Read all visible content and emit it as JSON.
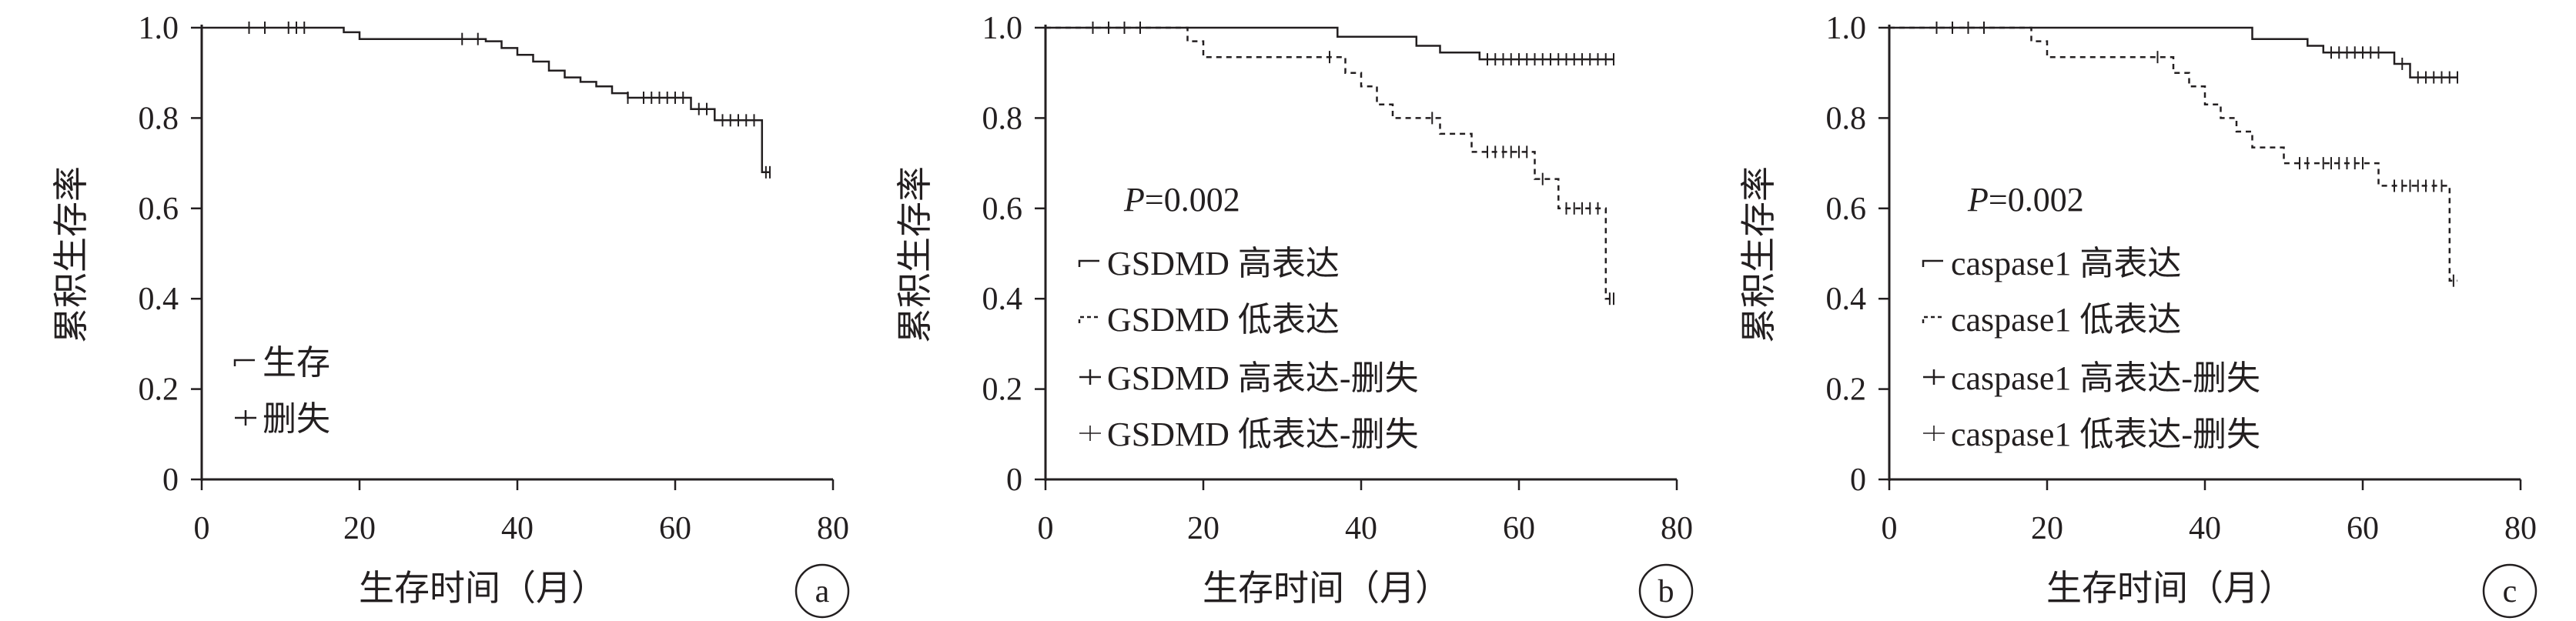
{
  "figure": {
    "panels": [
      {
        "letter": "a",
        "ylabel": "累积生存率",
        "xlabel": "生存时间（月）",
        "pvalue_label": "",
        "pvalue": ""
      },
      {
        "letter": "b",
        "ylabel": "累积生存率",
        "xlabel": "生存时间（月）",
        "pvalue_label": "P",
        "pvalue": "=0.002"
      },
      {
        "letter": "c",
        "ylabel": "累积生存率",
        "xlabel": "生存时间（月）",
        "pvalue_label": "P",
        "pvalue": "=0.002"
      }
    ]
  },
  "chart_data": [
    {
      "type": "line",
      "subtype": "kaplan-meier",
      "panel": "a",
      "xlabel": "生存时间（月）",
      "ylabel": "累积生存率",
      "xlim": [
        0,
        80
      ],
      "ylim": [
        0,
        1.0
      ],
      "xticks": [
        "0",
        "20",
        "40",
        "60",
        "80"
      ],
      "yticks": [
        "0",
        "0.2",
        "0.4",
        "0.6",
        "0.8",
        "1.0"
      ],
      "grid": false,
      "legend_position": "lower-left",
      "legend": [
        {
          "label": "生存",
          "style": "step"
        },
        {
          "label": "删失",
          "style": "censor"
        }
      ],
      "series": [
        {
          "name": "生存",
          "line": "solid",
          "x": [
            0,
            18,
            20,
            36,
            38,
            40,
            42,
            44,
            46,
            48,
            50,
            52,
            54,
            62,
            65,
            71,
            72
          ],
          "y": [
            1.0,
            0.99,
            0.975,
            0.97,
            0.955,
            0.94,
            0.925,
            0.905,
            0.89,
            0.88,
            0.87,
            0.855,
            0.845,
            0.82,
            0.795,
            0.68,
            0.68
          ],
          "censored": [
            [
              6,
              1.0
            ],
            [
              8,
              1.0
            ],
            [
              11,
              1.0
            ],
            [
              12,
              1.0
            ],
            [
              13,
              1.0
            ],
            [
              33,
              0.975
            ],
            [
              35,
              0.975
            ],
            [
              54,
              0.845
            ],
            [
              56,
              0.845
            ],
            [
              57,
              0.845
            ],
            [
              58,
              0.845
            ],
            [
              59,
              0.845
            ],
            [
              60,
              0.845
            ],
            [
              61,
              0.845
            ],
            [
              63,
              0.82
            ],
            [
              64,
              0.82
            ],
            [
              66,
              0.795
            ],
            [
              67,
              0.795
            ],
            [
              68,
              0.795
            ],
            [
              69,
              0.795
            ],
            [
              70,
              0.795
            ],
            [
              71.5,
              0.68
            ],
            [
              72,
              0.68
            ]
          ]
        }
      ]
    },
    {
      "type": "line",
      "subtype": "kaplan-meier",
      "panel": "b",
      "xlabel": "生存时间（月）",
      "ylabel": "累积生存率",
      "xlim": [
        0,
        80
      ],
      "ylim": [
        0,
        1.0
      ],
      "xticks": [
        "0",
        "20",
        "40",
        "60",
        "80"
      ],
      "yticks": [
        "0",
        "0.2",
        "0.4",
        "0.6",
        "0.8",
        "1.0"
      ],
      "grid": false,
      "legend_position": "lower-left",
      "annotation": "P=0.002",
      "legend": [
        {
          "label": "GSDMD 高表达",
          "style": "solid"
        },
        {
          "label": "GSDMD 低表达",
          "style": "dashed"
        },
        {
          "label": "GSDMD 高表达-删失",
          "style": "censor"
        },
        {
          "label": "GSDMD 低表达-删失",
          "style": "censor-light"
        }
      ],
      "series": [
        {
          "name": "GSDMD 高表达",
          "line": "solid",
          "x": [
            0,
            37,
            47,
            50,
            55,
            72
          ],
          "y": [
            1.0,
            0.98,
            0.96,
            0.945,
            0.93,
            0.93
          ],
          "censored": [
            [
              6,
              1.0
            ],
            [
              8,
              1.0
            ],
            [
              10,
              1.0
            ],
            [
              12,
              1.0
            ],
            [
              56,
              0.93
            ],
            [
              57,
              0.93
            ],
            [
              58,
              0.93
            ],
            [
              59,
              0.93
            ],
            [
              60,
              0.93
            ],
            [
              61,
              0.93
            ],
            [
              62,
              0.93
            ],
            [
              63,
              0.93
            ],
            [
              64,
              0.93
            ],
            [
              65,
              0.93
            ],
            [
              66,
              0.93
            ],
            [
              67,
              0.93
            ],
            [
              68,
              0.93
            ],
            [
              69,
              0.93
            ],
            [
              70,
              0.93
            ],
            [
              71,
              0.93
            ],
            [
              72,
              0.93
            ]
          ]
        },
        {
          "name": "GSDMD 低表达",
          "line": "dashed",
          "x": [
            0,
            18,
            20,
            38,
            40,
            42,
            44,
            50,
            54,
            62,
            65,
            71,
            72
          ],
          "y": [
            1.0,
            0.97,
            0.935,
            0.9,
            0.87,
            0.83,
            0.8,
            0.765,
            0.725,
            0.665,
            0.6,
            0.4,
            0.4
          ],
          "censored": [
            [
              36,
              0.935
            ],
            [
              49,
              0.8
            ],
            [
              56,
              0.725
            ],
            [
              57,
              0.725
            ],
            [
              58,
              0.725
            ],
            [
              59,
              0.725
            ],
            [
              60,
              0.725
            ],
            [
              61,
              0.725
            ],
            [
              63,
              0.665
            ],
            [
              66,
              0.6
            ],
            [
              67,
              0.6
            ],
            [
              68,
              0.6
            ],
            [
              69,
              0.6
            ],
            [
              70,
              0.6
            ],
            [
              71.5,
              0.4
            ],
            [
              72,
              0.4
            ]
          ]
        }
      ]
    },
    {
      "type": "line",
      "subtype": "kaplan-meier",
      "panel": "c",
      "xlabel": "生存时间（月）",
      "ylabel": "累积生存率",
      "xlim": [
        0,
        80
      ],
      "ylim": [
        0,
        1.0
      ],
      "xticks": [
        "0",
        "20",
        "40",
        "60",
        "80"
      ],
      "yticks": [
        "0",
        "0.2",
        "0.4",
        "0.6",
        "0.8",
        "1.0"
      ],
      "grid": false,
      "legend_position": "lower-left",
      "annotation": "P=0.002",
      "legend": [
        {
          "label": "caspase1 高表达",
          "style": "solid"
        },
        {
          "label": "caspase1 低表达",
          "style": "dashed"
        },
        {
          "label": "caspase1 高表达-删失",
          "style": "censor"
        },
        {
          "label": "caspase1 低表达-删失",
          "style": "censor-light"
        }
      ],
      "series": [
        {
          "name": "caspase1 高表达",
          "line": "solid",
          "x": [
            0,
            46,
            53,
            55,
            64,
            66,
            72
          ],
          "y": [
            1.0,
            0.975,
            0.96,
            0.945,
            0.92,
            0.89,
            0.89
          ],
          "censored": [
            [
              6,
              1.0
            ],
            [
              8,
              1.0
            ],
            [
              10,
              1.0
            ],
            [
              12,
              1.0
            ],
            [
              56,
              0.945
            ],
            [
              57,
              0.945
            ],
            [
              58,
              0.945
            ],
            [
              59,
              0.945
            ],
            [
              60,
              0.945
            ],
            [
              61,
              0.945
            ],
            [
              62,
              0.945
            ],
            [
              65,
              0.92
            ],
            [
              67,
              0.89
            ],
            [
              68,
              0.89
            ],
            [
              69,
              0.89
            ],
            [
              70,
              0.89
            ],
            [
              71,
              0.89
            ],
            [
              72,
              0.89
            ]
          ]
        },
        {
          "name": "caspase1 低表达",
          "line": "dashed",
          "x": [
            0,
            18,
            20,
            36,
            38,
            40,
            42,
            44,
            46,
            50,
            62,
            71,
            72
          ],
          "y": [
            1.0,
            0.97,
            0.935,
            0.9,
            0.87,
            0.83,
            0.8,
            0.77,
            0.735,
            0.7,
            0.65,
            0.44,
            0.44
          ],
          "censored": [
            [
              34,
              0.935
            ],
            [
              52,
              0.7
            ],
            [
              53,
              0.7
            ],
            [
              55,
              0.7
            ],
            [
              56,
              0.7
            ],
            [
              57,
              0.7
            ],
            [
              58,
              0.7
            ],
            [
              59,
              0.7
            ],
            [
              60,
              0.7
            ],
            [
              64,
              0.65
            ],
            [
              65,
              0.65
            ],
            [
              66,
              0.65
            ],
            [
              67,
              0.65
            ],
            [
              68,
              0.65
            ],
            [
              69,
              0.65
            ],
            [
              70,
              0.65
            ],
            [
              71.5,
              0.44
            ]
          ]
        }
      ]
    }
  ]
}
